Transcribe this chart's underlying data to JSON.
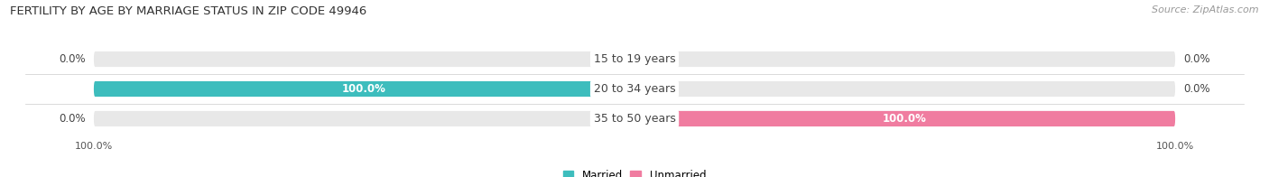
{
  "title": "FERTILITY BY AGE BY MARRIAGE STATUS IN ZIP CODE 49946",
  "source": "Source: ZipAtlas.com",
  "categories": [
    "15 to 19 years",
    "20 to 34 years",
    "35 to 50 years"
  ],
  "married_values": [
    0.0,
    100.0,
    0.0
  ],
  "unmarried_values": [
    0.0,
    0.0,
    100.0
  ],
  "married_color": "#3DBDBD",
  "married_light_color": "#A8DEDE",
  "unmarried_color": "#F07CA0",
  "unmarried_light_color": "#F9B8CE",
  "bar_bg_color": "#E8E8E8",
  "bar_height": 0.52,
  "title_fontsize": 9.5,
  "source_fontsize": 8,
  "label_fontsize": 8.5,
  "cat_fontsize": 9,
  "tick_fontsize": 8,
  "bg_color": "#FFFFFF",
  "center_label_color": "#444444",
  "value_label_color": "#444444",
  "value_label_white": "#FFFFFF"
}
